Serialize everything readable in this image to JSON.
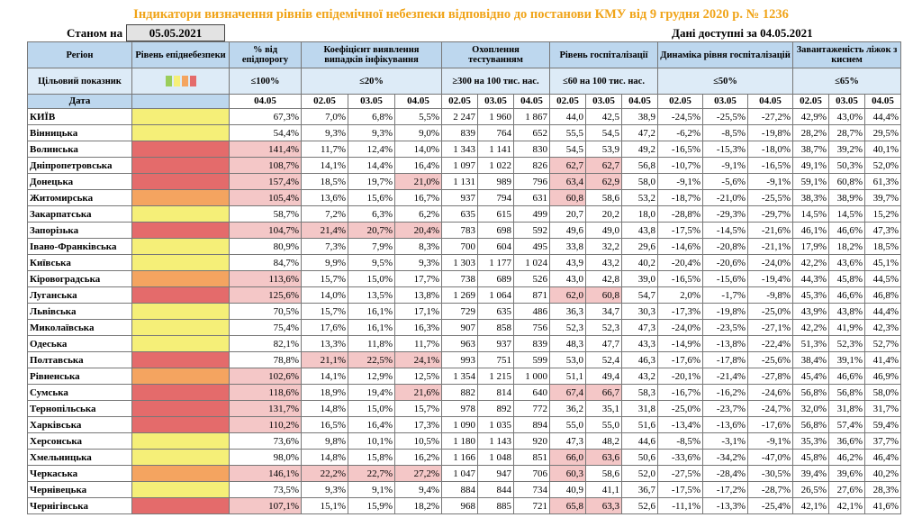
{
  "title": "Індикатори визначення рівнів епідемічної небезпеки відповідно до постанови КМУ від 9 грудня 2020 р. № 1236",
  "as_of_label": "Станом на",
  "as_of_date": "05.05.2021",
  "data_available": "Дані доступні за 04.05.2021",
  "colors": {
    "yellow": "#f5ef78",
    "orange": "#f4a460",
    "red": "#e46b6b",
    "green": "#9acd5b",
    "highlight": "#f4c7c7"
  },
  "header": {
    "region": "Регіон",
    "level": "Рівень епіднебезпеки",
    "pct_threshold": "% від епідпорогу",
    "coef": "Коефіцієнт виявлення випадків інфікування",
    "testing": "Охоплення тестуванням",
    "hosp": "Рівень госпіталізації",
    "hosp_dyn": "Динаміка рівня госпіталізацій",
    "beds": "Завантаженість ліжок з киснем",
    "target_label": "Цільовий показник",
    "t_pct": "≤100%",
    "t_coef": "≤20%",
    "t_test": "≥300 на 100 тис. нас.",
    "t_hosp": "≤60 на 100 тис. нас.",
    "t_dyn": "≤50%",
    "t_beds": "≤65%",
    "date_label": "Дата",
    "d_pct": "04.05",
    "d_coef": [
      "02.05",
      "03.05",
      "04.05"
    ],
    "d_test": [
      "02.05",
      "03.05",
      "04.05"
    ],
    "d_hosp": [
      "02.05",
      "03.05",
      "04.05"
    ],
    "d_dyn": [
      "02.05",
      "03.05",
      "04.05"
    ],
    "d_beds": [
      "02.05",
      "03.05",
      "04.05"
    ]
  },
  "rows": [
    {
      "region": "КИЇВ",
      "level": "yellow",
      "pct": "67,3%",
      "coef": [
        "7,0%",
        "6,8%",
        "5,5%"
      ],
      "test": [
        "2 247",
        "1 960",
        "1 867"
      ],
      "hosp": [
        "44,0",
        "42,5",
        "38,9"
      ],
      "dyn": [
        "-24,5%",
        "-25,5%",
        "-27,2%"
      ],
      "beds": [
        "42,9%",
        "43,0%",
        "44,4%"
      ]
    },
    {
      "region": "Вінницька",
      "level": "yellow",
      "pct": "54,4%",
      "coef": [
        "9,3%",
        "9,3%",
        "9,0%"
      ],
      "test": [
        "839",
        "764",
        "652"
      ],
      "hosp": [
        "55,5",
        "54,5",
        "47,2"
      ],
      "dyn": [
        "-6,2%",
        "-8,5%",
        "-19,8%"
      ],
      "beds": [
        "28,2%",
        "28,7%",
        "29,5%"
      ]
    },
    {
      "region": "Волинська",
      "level": "red",
      "pct": "141,4%",
      "coef": [
        "11,7%",
        "12,4%",
        "14,0%"
      ],
      "test": [
        "1 343",
        "1 141",
        "830"
      ],
      "hosp": [
        "54,5",
        "53,9",
        "49,2"
      ],
      "dyn": [
        "-16,5%",
        "-15,3%",
        "-18,0%"
      ],
      "beds": [
        "38,7%",
        "39,2%",
        "40,1%"
      ]
    },
    {
      "region": "Дніпропетровська",
      "level": "red",
      "pct": "108,7%",
      "coef": [
        "14,1%",
        "14,4%",
        "16,4%"
      ],
      "test": [
        "1 097",
        "1 022",
        "826"
      ],
      "hosp": [
        "62,7",
        "62,7",
        "56,8"
      ],
      "dyn": [
        "-10,7%",
        "-9,1%",
        "-16,5%"
      ],
      "beds": [
        "49,1%",
        "50,3%",
        "52,0%"
      ]
    },
    {
      "region": "Донецька",
      "level": "red",
      "pct": "157,4%",
      "coef": [
        "18,5%",
        "19,7%",
        "21,0%"
      ],
      "test": [
        "1 131",
        "989",
        "796"
      ],
      "hosp": [
        "63,4",
        "62,9",
        "58,0"
      ],
      "dyn": [
        "-9,1%",
        "-5,6%",
        "-9,1%"
      ],
      "beds": [
        "59,1%",
        "60,8%",
        "61,3%"
      ]
    },
    {
      "region": "Житомирська",
      "level": "orange",
      "pct": "105,4%",
      "coef": [
        "13,6%",
        "15,6%",
        "16,7%"
      ],
      "test": [
        "937",
        "794",
        "631"
      ],
      "hosp": [
        "60,8",
        "58,6",
        "53,2"
      ],
      "dyn": [
        "-18,7%",
        "-21,0%",
        "-25,5%"
      ],
      "beds": [
        "38,3%",
        "38,9%",
        "39,7%"
      ]
    },
    {
      "region": "Закарпатська",
      "level": "yellow",
      "pct": "58,7%",
      "coef": [
        "7,2%",
        "6,3%",
        "6,2%"
      ],
      "test": [
        "635",
        "615",
        "499"
      ],
      "hosp": [
        "20,7",
        "20,2",
        "18,0"
      ],
      "dyn": [
        "-28,8%",
        "-29,3%",
        "-29,7%"
      ],
      "beds": [
        "14,5%",
        "14,5%",
        "15,2%"
      ]
    },
    {
      "region": "Запорізька",
      "level": "red",
      "pct": "104,7%",
      "coef": [
        "21,4%",
        "20,7%",
        "20,4%"
      ],
      "test": [
        "783",
        "698",
        "592"
      ],
      "hosp": [
        "49,6",
        "49,0",
        "43,8"
      ],
      "dyn": [
        "-17,5%",
        "-14,5%",
        "-21,6%"
      ],
      "beds": [
        "46,1%",
        "46,6%",
        "47,3%"
      ]
    },
    {
      "region": "Івано-Франківська",
      "level": "yellow",
      "pct": "80,9%",
      "coef": [
        "7,3%",
        "7,9%",
        "8,3%"
      ],
      "test": [
        "700",
        "604",
        "495"
      ],
      "hosp": [
        "33,8",
        "32,2",
        "29,6"
      ],
      "dyn": [
        "-14,6%",
        "-20,8%",
        "-21,1%"
      ],
      "beds": [
        "17,9%",
        "18,2%",
        "18,5%"
      ]
    },
    {
      "region": "Київська",
      "level": "yellow",
      "pct": "84,7%",
      "coef": [
        "9,9%",
        "9,5%",
        "9,3%"
      ],
      "test": [
        "1 303",
        "1 177",
        "1 024"
      ],
      "hosp": [
        "43,9",
        "43,2",
        "40,2"
      ],
      "dyn": [
        "-20,4%",
        "-20,6%",
        "-24,0%"
      ],
      "beds": [
        "42,2%",
        "43,6%",
        "45,1%"
      ]
    },
    {
      "region": "Кіровоградська",
      "level": "orange",
      "pct": "113,6%",
      "coef": [
        "15,7%",
        "15,0%",
        "17,7%"
      ],
      "test": [
        "738",
        "689",
        "526"
      ],
      "hosp": [
        "43,0",
        "42,8",
        "39,0"
      ],
      "dyn": [
        "-16,5%",
        "-15,6%",
        "-19,4%"
      ],
      "beds": [
        "44,3%",
        "45,8%",
        "44,5%"
      ]
    },
    {
      "region": "Луганська",
      "level": "red",
      "pct": "125,6%",
      "coef": [
        "14,0%",
        "13,5%",
        "13,8%"
      ],
      "test": [
        "1 269",
        "1 064",
        "871"
      ],
      "hosp": [
        "62,0",
        "60,8",
        "54,7"
      ],
      "dyn": [
        "2,0%",
        "-1,7%",
        "-9,8%"
      ],
      "beds": [
        "45,3%",
        "46,6%",
        "46,8%"
      ]
    },
    {
      "region": "Львівська",
      "level": "yellow",
      "pct": "70,5%",
      "coef": [
        "15,7%",
        "16,1%",
        "17,1%"
      ],
      "test": [
        "729",
        "635",
        "486"
      ],
      "hosp": [
        "36,3",
        "34,7",
        "30,3"
      ],
      "dyn": [
        "-17,3%",
        "-19,8%",
        "-25,0%"
      ],
      "beds": [
        "43,9%",
        "43,8%",
        "44,4%"
      ]
    },
    {
      "region": "Миколаївська",
      "level": "yellow",
      "pct": "75,4%",
      "coef": [
        "17,6%",
        "16,1%",
        "16,3%"
      ],
      "test": [
        "907",
        "858",
        "756"
      ],
      "hosp": [
        "52,3",
        "52,3",
        "47,3"
      ],
      "dyn": [
        "-24,0%",
        "-23,5%",
        "-27,1%"
      ],
      "beds": [
        "42,2%",
        "41,9%",
        "42,3%"
      ]
    },
    {
      "region": "Одеська",
      "level": "yellow",
      "pct": "82,1%",
      "coef": [
        "13,3%",
        "11,8%",
        "11,7%"
      ],
      "test": [
        "963",
        "937",
        "839"
      ],
      "hosp": [
        "48,3",
        "47,7",
        "43,3"
      ],
      "dyn": [
        "-14,9%",
        "-13,8%",
        "-22,4%"
      ],
      "beds": [
        "51,3%",
        "52,3%",
        "52,7%"
      ]
    },
    {
      "region": "Полтавська",
      "level": "red",
      "pct": "78,8%",
      "coef": [
        "21,1%",
        "22,5%",
        "24,1%"
      ],
      "test": [
        "993",
        "751",
        "599"
      ],
      "hosp": [
        "53,0",
        "52,4",
        "46,3"
      ],
      "dyn": [
        "-17,6%",
        "-17,8%",
        "-25,6%"
      ],
      "beds": [
        "38,4%",
        "39,1%",
        "41,4%"
      ]
    },
    {
      "region": "Рівненська",
      "level": "orange",
      "pct": "102,6%",
      "coef": [
        "14,1%",
        "12,9%",
        "12,5%"
      ],
      "test": [
        "1 354",
        "1 215",
        "1 000"
      ],
      "hosp": [
        "51,1",
        "49,4",
        "43,2"
      ],
      "dyn": [
        "-20,1%",
        "-21,4%",
        "-27,8%"
      ],
      "beds": [
        "45,4%",
        "46,6%",
        "46,9%"
      ]
    },
    {
      "region": "Сумська",
      "level": "red",
      "pct": "118,6%",
      "coef": [
        "18,9%",
        "19,4%",
        "21,6%"
      ],
      "test": [
        "882",
        "814",
        "640"
      ],
      "hosp": [
        "67,4",
        "66,7",
        "58,3"
      ],
      "dyn": [
        "-16,7%",
        "-16,2%",
        "-24,6%"
      ],
      "beds": [
        "56,8%",
        "56,8%",
        "58,0%"
      ]
    },
    {
      "region": "Тернопільська",
      "level": "red",
      "pct": "131,7%",
      "coef": [
        "14,8%",
        "15,0%",
        "15,7%"
      ],
      "test": [
        "978",
        "892",
        "772"
      ],
      "hosp": [
        "36,2",
        "35,1",
        "31,8"
      ],
      "dyn": [
        "-25,0%",
        "-23,7%",
        "-24,7%"
      ],
      "beds": [
        "32,0%",
        "31,8%",
        "31,7%"
      ]
    },
    {
      "region": "Харківська",
      "level": "red",
      "pct": "110,2%",
      "coef": [
        "16,5%",
        "16,4%",
        "17,3%"
      ],
      "test": [
        "1 090",
        "1 035",
        "894"
      ],
      "hosp": [
        "55,0",
        "55,0",
        "51,6"
      ],
      "dyn": [
        "-13,4%",
        "-13,6%",
        "-17,6%"
      ],
      "beds": [
        "56,8%",
        "57,4%",
        "59,4%"
      ]
    },
    {
      "region": "Херсонська",
      "level": "yellow",
      "pct": "73,6%",
      "coef": [
        "9,8%",
        "10,1%",
        "10,5%"
      ],
      "test": [
        "1 180",
        "1 143",
        "920"
      ],
      "hosp": [
        "47,3",
        "48,2",
        "44,6"
      ],
      "dyn": [
        "-8,5%",
        "-3,1%",
        "-9,1%"
      ],
      "beds": [
        "35,3%",
        "36,6%",
        "37,7%"
      ]
    },
    {
      "region": "Хмельницька",
      "level": "yellow",
      "pct": "98,0%",
      "coef": [
        "14,8%",
        "15,8%",
        "16,2%"
      ],
      "test": [
        "1 166",
        "1 048",
        "851"
      ],
      "hosp": [
        "66,0",
        "63,6",
        "50,6"
      ],
      "dyn": [
        "-33,6%",
        "-34,2%",
        "-47,0%"
      ],
      "beds": [
        "45,8%",
        "46,2%",
        "46,4%"
      ]
    },
    {
      "region": "Черкаська",
      "level": "orange",
      "pct": "146,1%",
      "coef": [
        "22,2%",
        "22,7%",
        "27,2%"
      ],
      "test": [
        "1 047",
        "947",
        "706"
      ],
      "hosp": [
        "60,3",
        "58,6",
        "52,0"
      ],
      "dyn": [
        "-27,5%",
        "-28,4%",
        "-30,5%"
      ],
      "beds": [
        "39,4%",
        "39,6%",
        "40,2%"
      ]
    },
    {
      "region": "Чернівецька",
      "level": "yellow",
      "pct": "73,5%",
      "coef": [
        "9,3%",
        "9,1%",
        "9,4%"
      ],
      "test": [
        "884",
        "844",
        "734"
      ],
      "hosp": [
        "40,9",
        "41,1",
        "36,7"
      ],
      "dyn": [
        "-17,5%",
        "-17,2%",
        "-28,7%"
      ],
      "beds": [
        "26,5%",
        "27,6%",
        "28,3%"
      ]
    },
    {
      "region": "Чернігівська",
      "level": "red",
      "pct": "107,1%",
      "coef": [
        "15,1%",
        "15,9%",
        "18,2%"
      ],
      "test": [
        "968",
        "885",
        "721"
      ],
      "hosp": [
        "65,8",
        "63,3",
        "52,6"
      ],
      "dyn": [
        "-11,1%",
        "-13,3%",
        "-25,4%"
      ],
      "beds": [
        "42,1%",
        "42,1%",
        "41,6%"
      ]
    }
  ]
}
